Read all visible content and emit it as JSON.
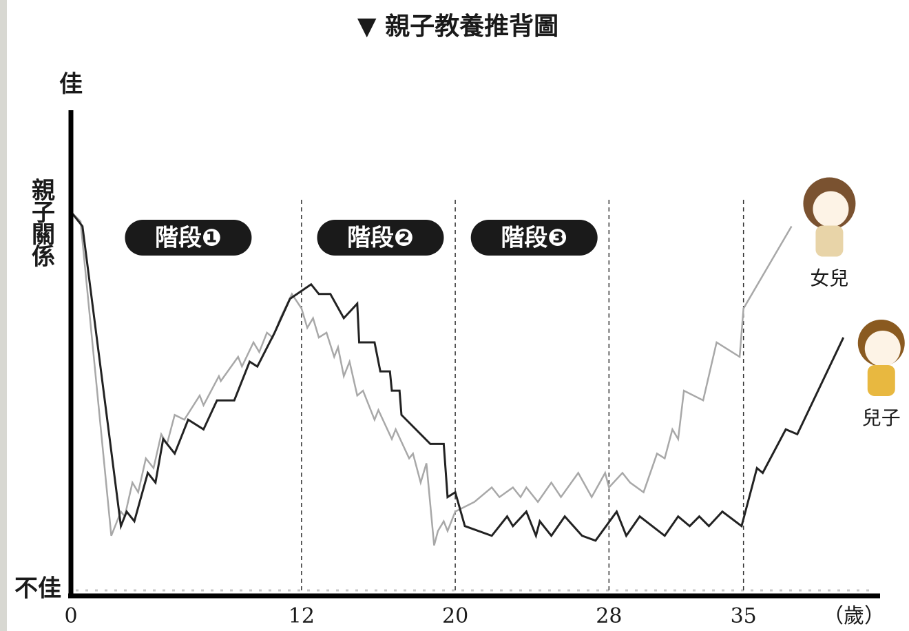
{
  "chart_data": {
    "type": "line",
    "title": "▼ 親子教養推背圖",
    "y_label": "親子關係",
    "x_label": "（歲）",
    "xlim": [
      0,
      42
    ],
    "xticks": [
      0,
      12,
      20,
      28,
      35
    ],
    "ylim": [
      0,
      100
    ],
    "yticks": [
      {
        "value": 0,
        "label": "不佳"
      },
      {
        "value": 100,
        "label": "佳"
      }
    ],
    "stages": [
      "階段❶",
      "階段❷",
      "階段❸"
    ],
    "series": [
      {
        "name": "女兒",
        "color": "#a8a8a8",
        "x": [
          0,
          0.5,
          2.1,
          2.6,
          2.8,
          3.2,
          3.5,
          3.9,
          4.3,
          4.7,
          5.0,
          5.4,
          5.9,
          6.7,
          6.9,
          7.7,
          7.8,
          8.7,
          8.9,
          9.5,
          9.8,
          10.2,
          10.5,
          10.9,
          11.5,
          12.0,
          12.3,
          12.6,
          12.9,
          13.3,
          13.7,
          13.9,
          14.2,
          14.5,
          14.9,
          15.2,
          15.8,
          16.0,
          16.7,
          16.9,
          17.6,
          17.8,
          18.2,
          18.5,
          18.9,
          19.1,
          19.4,
          19.6,
          20.0,
          21.0,
          21.9,
          22.3,
          23.0,
          23.4,
          23.7,
          24.3,
          25.0,
          25.5,
          26.4,
          27.1,
          27.8,
          28.0,
          28.7,
          29.1,
          29.8,
          30.5,
          30.9,
          31.3,
          31.6,
          31.9,
          32.9,
          33.6,
          34.8,
          35.0,
          37.5
        ],
        "values": [
          79,
          77,
          12,
          17,
          16,
          23,
          21,
          28,
          26,
          33,
          31,
          37,
          36,
          41,
          39,
          45,
          44,
          49,
          47,
          52,
          50,
          54,
          53,
          57,
          62,
          59,
          55,
          57,
          53,
          54,
          49,
          51,
          45,
          48,
          41,
          42,
          36,
          38,
          32,
          34,
          28,
          29,
          23,
          27,
          10,
          13,
          15,
          13,
          17,
          19,
          22,
          20,
          22,
          20,
          22,
          19,
          23,
          20,
          25,
          20,
          25,
          22,
          25,
          23,
          21,
          29,
          28,
          34,
          32,
          42,
          40,
          52,
          49,
          59,
          76
        ]
      },
      {
        "name": "兒子",
        "color": "#222222",
        "x": [
          0,
          0.6,
          2.6,
          2.9,
          3.3,
          4.0,
          4.4,
          4.8,
          5.4,
          6.1,
          6.9,
          7.6,
          8.5,
          9.3,
          9.7,
          10.6,
          11.4,
          12.5,
          12.9,
          13.5,
          14.2,
          14.9,
          15.0,
          15.8,
          16.1,
          16.6,
          16.7,
          17.1,
          17.2,
          18.7,
          19.4,
          19.6,
          20.0,
          20.5,
          21.9,
          22.7,
          23.0,
          23.7,
          24.2,
          24.4,
          25.0,
          25.7,
          26.6,
          27.3,
          28.4,
          28.9,
          29.6,
          30.9,
          31.6,
          32.2,
          32.7,
          33.2,
          33.9,
          34.9,
          35.7,
          36.0,
          37.2,
          37.8,
          40.2
        ],
        "values": [
          79,
          76,
          14,
          17,
          15,
          25,
          23,
          32,
          29,
          36,
          34,
          40,
          40,
          48,
          47,
          54,
          61,
          64,
          62,
          62,
          57,
          60,
          52,
          52,
          46,
          46,
          42,
          42,
          37,
          31,
          31,
          20,
          21,
          14,
          12,
          16,
          14,
          17,
          12,
          15,
          12,
          16,
          12,
          11,
          17,
          12,
          16,
          12,
          16,
          14,
          16,
          14,
          17,
          14,
          26,
          25,
          34,
          33,
          53
        ]
      }
    ]
  }
}
